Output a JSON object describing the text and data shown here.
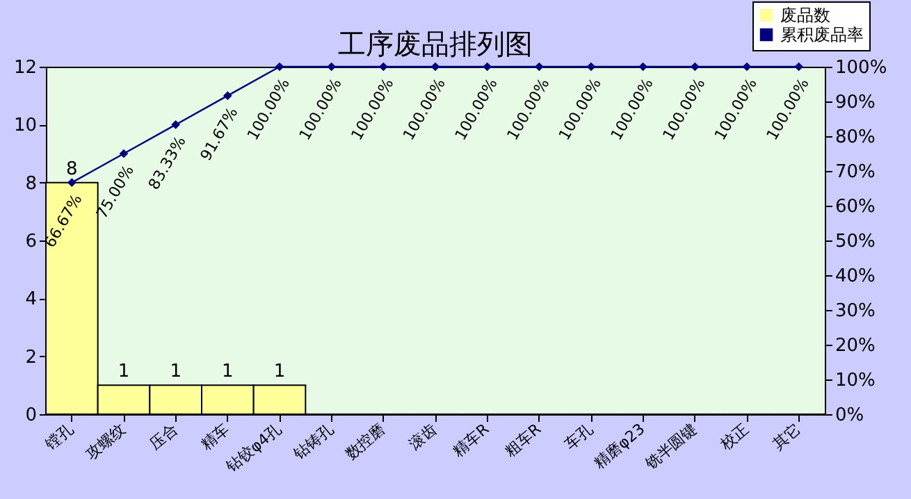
{
  "chart_data": {
    "type": "bar",
    "title": "工序废品排列图",
    "categories": [
      "镗孔",
      "攻螺纹",
      "压合",
      "精车",
      "钻铰φ4孔",
      "钻铸孔",
      "数控磨",
      "滚齿",
      "精车R",
      "粗车R",
      "车孔",
      "精磨φ23",
      "铣半圆键",
      "校正",
      "其它"
    ],
    "series": [
      {
        "name": "废品数",
        "color": "#ffff99",
        "values": [
          8,
          1,
          1,
          1,
          1,
          0,
          0,
          0,
          0,
          0,
          0,
          0,
          0,
          0,
          0
        ],
        "value_labels": [
          "8",
          "1",
          "1",
          "1",
          "1",
          null,
          null,
          null,
          null,
          null,
          null,
          null,
          null,
          null,
          null
        ]
      },
      {
        "name": "累积废品率",
        "type": "line",
        "axis": "y2",
        "color": "#000080",
        "values": [
          66.67,
          75,
          83.33,
          91.67,
          100,
          100,
          100,
          100,
          100,
          100,
          100,
          100,
          100,
          100,
          100
        ],
        "value_labels": [
          "66.67%",
          "75.00%",
          "83.33%",
          "91.67%",
          "100.00%",
          "100.00%",
          "100.00%",
          "100.00%",
          "100.00%",
          "100.00%",
          "100.00%",
          "100.00%",
          "100.00%",
          "100.00%",
          "100.00%"
        ]
      }
    ],
    "ylim": [
      0,
      12
    ],
    "yticks": [
      0,
      2,
      4,
      6,
      8,
      10,
      12
    ],
    "y2lim": [
      0,
      100
    ],
    "y2ticks": [
      {
        "value": 0,
        "label": "0%"
      },
      {
        "value": 10,
        "label": "10%"
      },
      {
        "value": 20,
        "label": "20%"
      },
      {
        "value": 30,
        "label": "30%"
      },
      {
        "value": 40,
        "label": "40%"
      },
      {
        "value": 50,
        "label": "50%"
      },
      {
        "value": 60,
        "label": "60%"
      },
      {
        "value": 70,
        "label": "70%"
      },
      {
        "value": 80,
        "label": "80%"
      },
      {
        "value": 90,
        "label": "90%"
      },
      {
        "value": 100,
        "label": "100%"
      }
    ],
    "marker": "diamond",
    "legend": "top right"
  }
}
